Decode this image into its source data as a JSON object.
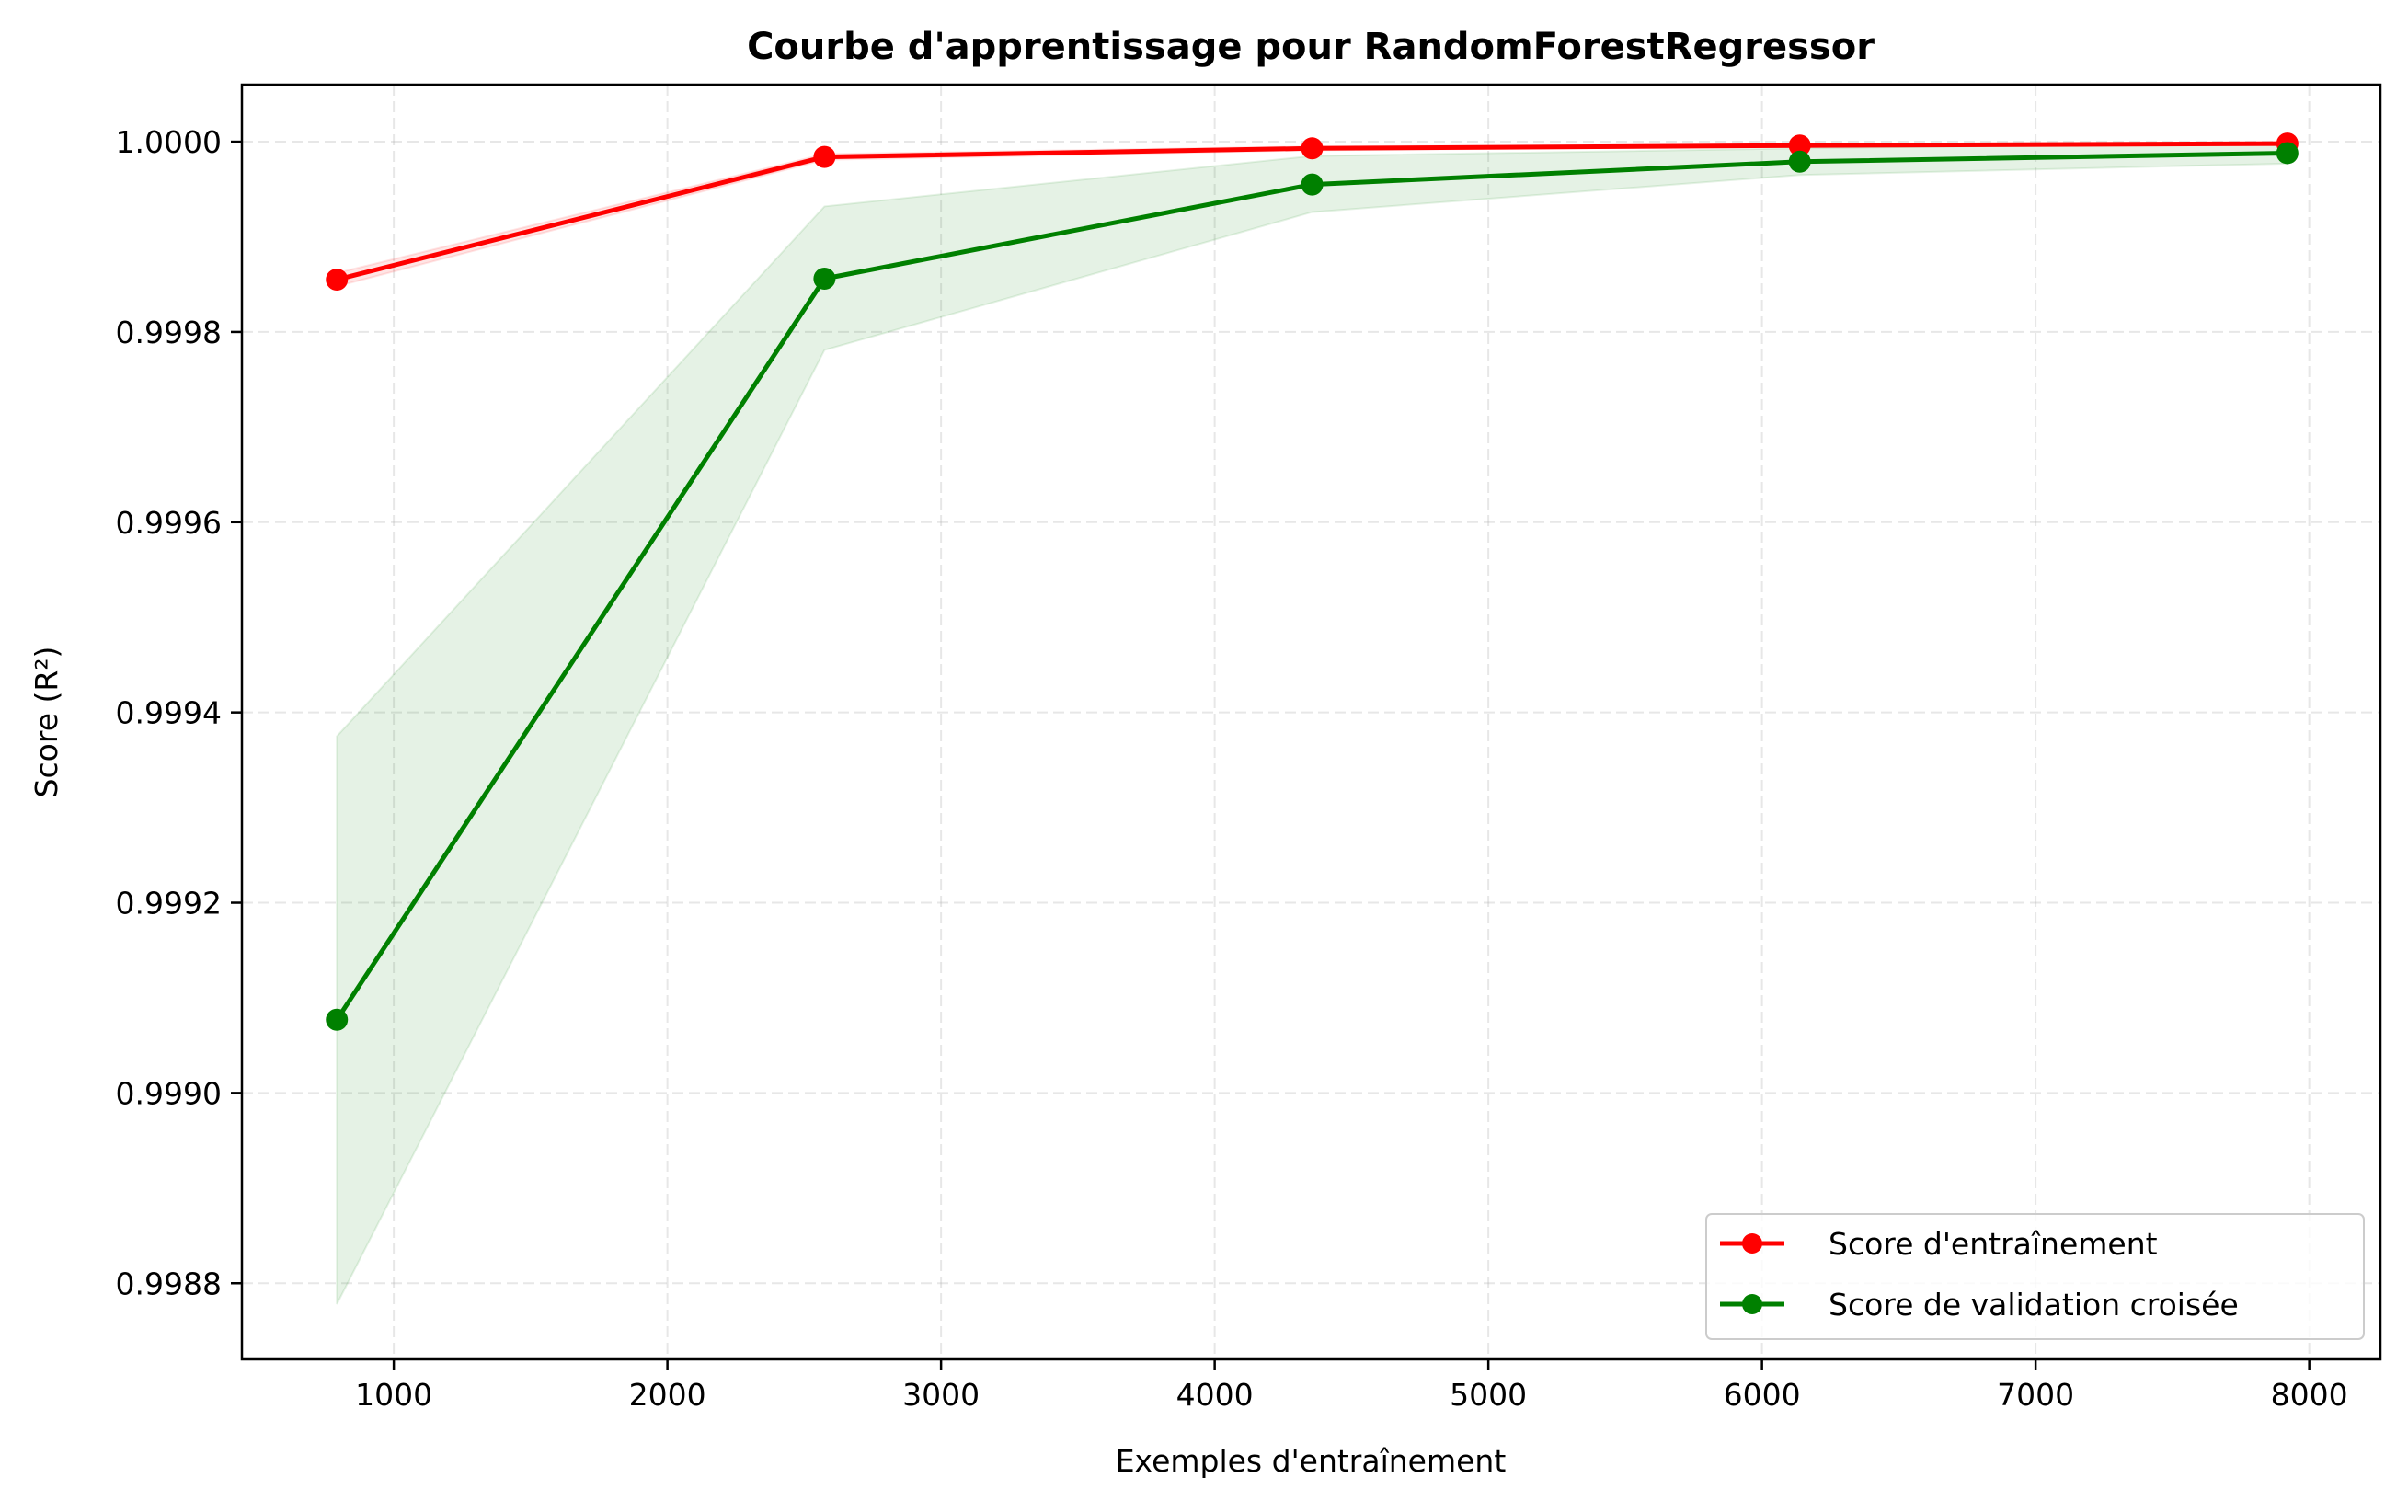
{
  "chart_data": {
    "type": "line",
    "title": "Courbe d'apprentissage pour RandomForestRegressor",
    "xlabel": "Exemples d'entraînement",
    "ylabel": "Score (R²)",
    "xlim": [
      445,
      8260
    ],
    "ylim": [
      0.99872,
      1.00006
    ],
    "xticks": [
      1000,
      2000,
      3000,
      4000,
      5000,
      6000,
      7000,
      8000
    ],
    "xtick_labels": [
      "1000",
      "2000",
      "3000",
      "4000",
      "5000",
      "6000",
      "7000",
      "8000"
    ],
    "yticks": [
      0.9988,
      0.999,
      0.9992,
      0.9994,
      0.9996,
      0.9998,
      1.0
    ],
    "ytick_labels": [
      "0.9988",
      "0.9990",
      "0.9992",
      "0.9994",
      "0.9996",
      "0.9998",
      "1.0000"
    ],
    "grid": true,
    "legend_position": "lower-right",
    "x": [
      792,
      2574,
      4356,
      6138,
      7920
    ],
    "series": [
      {
        "name": "Score d'entraînement",
        "color": "#ff0000",
        "values": [
          0.999855,
          0.999984,
          0.999993,
          0.999996,
          0.999998
        ],
        "band_lower": [
          0.999848,
          0.999981,
          0.999991,
          0.999995,
          0.999997
        ],
        "band_upper": [
          0.999862,
          0.999987,
          0.999995,
          0.999997,
          0.999999
        ]
      },
      {
        "name": "Score de validation croisée",
        "color": "#008000",
        "values": [
          0.999077,
          0.999856,
          0.999955,
          0.999979,
          0.999988
        ],
        "band_lower": [
          0.998778,
          0.999781,
          0.999926,
          0.999965,
          0.999977
        ],
        "band_upper": [
          0.999375,
          0.999932,
          0.999985,
          0.999993,
          0.999999
        ]
      }
    ]
  }
}
